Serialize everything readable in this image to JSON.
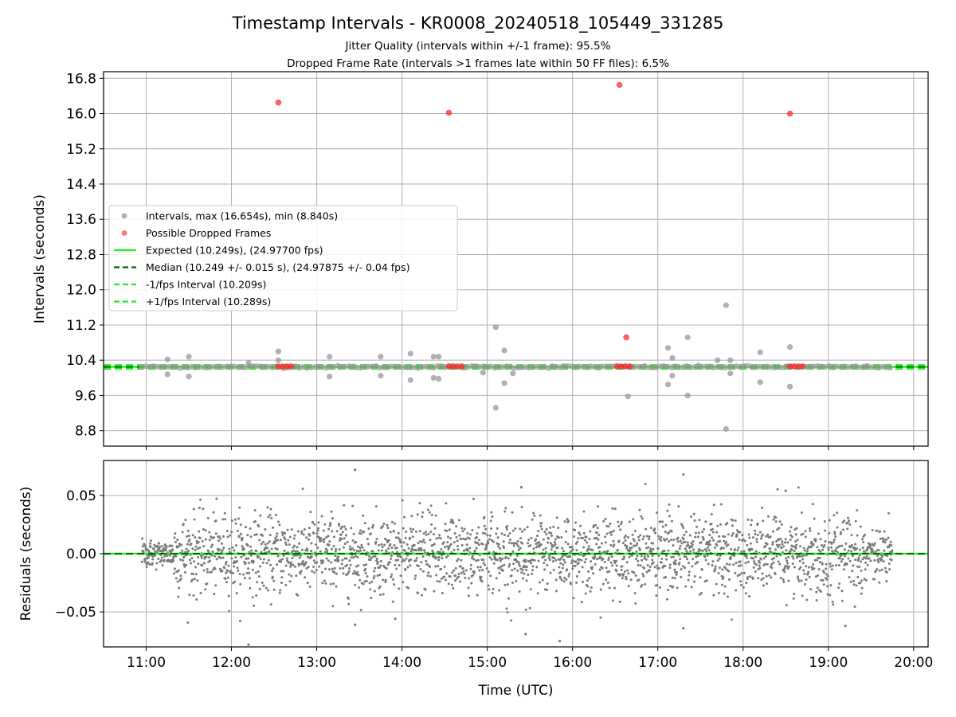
{
  "figure": {
    "title": "Timestamp Intervals - KR0008_20240518_105449_331285",
    "subtitle1": "Jitter Quality (intervals within +/-1 frame): 95.5%",
    "subtitle2": "Dropped Frame Rate (intervals >1 frames late within 50 FF files): 6.5%"
  },
  "chart_data": [
    {
      "type": "scatter",
      "ylabel": "Intervals (seconds)",
      "xlabel": "",
      "xlim": [
        10.5,
        20.17
      ],
      "ylim": [
        8.45,
        16.95
      ],
      "xticks": [
        11,
        12,
        13,
        14,
        15,
        16,
        17,
        18,
        19,
        20
      ],
      "xtick_labels": [
        "11:00",
        "12:00",
        "13:00",
        "14:00",
        "15:00",
        "16:00",
        "17:00",
        "18:00",
        "19:00",
        "20:00"
      ],
      "yticks": [
        8.8,
        9.6,
        10.4,
        11.2,
        12.0,
        12.8,
        13.6,
        14.4,
        15.2,
        16.0,
        16.8
      ],
      "ytick_labels": [
        "8.8",
        "9.6",
        "10.4",
        "11.2",
        "12.0",
        "12.8",
        "13.6",
        "14.4",
        "15.2",
        "16.0",
        "16.8"
      ],
      "grid": true,
      "legend_position": "center-left",
      "legend": [
        {
          "label": "Intervals, max (16.654s), min (8.840s)",
          "marker": "dot",
          "color": "#9e9e9e"
        },
        {
          "label": "Possible Dropped Frames",
          "marker": "dot",
          "color": "#ff5555"
        },
        {
          "label": "Expected (10.249s), (24.97700 fps)",
          "marker": "solid",
          "color": "#22ee22"
        },
        {
          "label": "Median (10.249 +/- 0.015 s), (24.97875 +/- 0.04 fps)",
          "marker": "dashed",
          "color": "#006400"
        },
        {
          "label": "-1/fps Interval (10.209s)",
          "marker": "dashed",
          "color": "#22ee22"
        },
        {
          "label": "+1/fps Interval (10.289s)",
          "marker": "dashed",
          "color": "#22ee22"
        }
      ],
      "reference_lines": {
        "expected": 10.249,
        "median": 10.249,
        "minus_one_fps": 10.209,
        "plus_one_fps": 10.289
      },
      "series": [
        {
          "name": "Intervals, max (16.654s), min (8.840s)",
          "x_range": [
            10.95,
            19.75
          ],
          "typical_y": 10.249,
          "outliers": [
            [
              11.25,
              10.42
            ],
            [
              11.25,
              10.08
            ],
            [
              11.5,
              10.48
            ],
            [
              11.5,
              10.03
            ],
            [
              12.2,
              10.34
            ],
            [
              12.55,
              10.6
            ],
            [
              12.55,
              10.4
            ],
            [
              13.15,
              10.48
            ],
            [
              13.15,
              10.03
            ],
            [
              13.75,
              10.48
            ],
            [
              13.75,
              10.05
            ],
            [
              14.1,
              10.55
            ],
            [
              14.1,
              9.95
            ],
            [
              14.37,
              10.48
            ],
            [
              14.37,
              10.0
            ],
            [
              14.43,
              10.48
            ],
            [
              14.43,
              9.98
            ],
            [
              14.95,
              10.12
            ],
            [
              15.1,
              11.15
            ],
            [
              15.1,
              9.32
            ],
            [
              15.2,
              10.62
            ],
            [
              15.2,
              9.88
            ],
            [
              15.3,
              10.1
            ],
            [
              16.65,
              9.58
            ],
            [
              17.12,
              10.68
            ],
            [
              17.12,
              9.85
            ],
            [
              17.17,
              10.45
            ],
            [
              17.17,
              10.05
            ],
            [
              17.35,
              10.92
            ],
            [
              17.35,
              9.6
            ],
            [
              17.7,
              10.4
            ],
            [
              17.8,
              11.65
            ],
            [
              17.8,
              8.84
            ],
            [
              17.85,
              10.4
            ],
            [
              17.85,
              10.1
            ],
            [
              18.2,
              10.58
            ],
            [
              18.2,
              9.9
            ],
            [
              18.55,
              10.7
            ],
            [
              18.55,
              9.8
            ]
          ]
        },
        {
          "name": "Possible Dropped Frames",
          "points": [
            [
              12.55,
              16.25
            ],
            [
              14.55,
              16.02
            ],
            [
              16.55,
              16.65
            ],
            [
              18.55,
              16.0
            ],
            [
              16.63,
              10.92
            ],
            [
              12.55,
              10.26
            ],
            [
              12.6,
              10.26
            ],
            [
              12.65,
              10.26
            ],
            [
              12.7,
              10.26
            ],
            [
              14.55,
              10.26
            ],
            [
              14.6,
              10.26
            ],
            [
              14.65,
              10.26
            ],
            [
              14.7,
              10.26
            ],
            [
              16.52,
              10.26
            ],
            [
              16.57,
              10.26
            ],
            [
              16.62,
              10.26
            ],
            [
              16.67,
              10.26
            ],
            [
              18.55,
              10.26
            ],
            [
              18.6,
              10.26
            ],
            [
              18.65,
              10.26
            ],
            [
              18.7,
              10.26
            ]
          ]
        }
      ]
    },
    {
      "type": "scatter",
      "ylabel": "Residuals (seconds)",
      "xlabel": "Time (UTC)",
      "xlim": [
        10.5,
        20.17
      ],
      "ylim": [
        -0.08,
        0.08
      ],
      "yticks": [
        0.05,
        0.0,
        -0.05
      ],
      "ytick_labels": [
        "0.05",
        "0.00",
        "−0.05"
      ],
      "grid": true,
      "reference_lines": {
        "zero_line_expected": 0.0,
        "zero_line_median": 0.0
      },
      "series": [
        {
          "name": "",
          "x_range": [
            10.95,
            19.75
          ],
          "typical_spread": 0.02,
          "extremes": [
            [
              13.45,
              0.072
            ],
            [
              17.3,
              0.068
            ],
            [
              15.4,
              0.057
            ],
            [
              18.5,
              0.054
            ],
            [
              12.2,
              -0.078
            ],
            [
              15.85,
              -0.075
            ],
            [
              15.45,
              -0.069
            ],
            [
              17.3,
              -0.064
            ],
            [
              19.2,
              -0.062
            ],
            [
              13.45,
              -0.061
            ]
          ]
        }
      ]
    }
  ]
}
